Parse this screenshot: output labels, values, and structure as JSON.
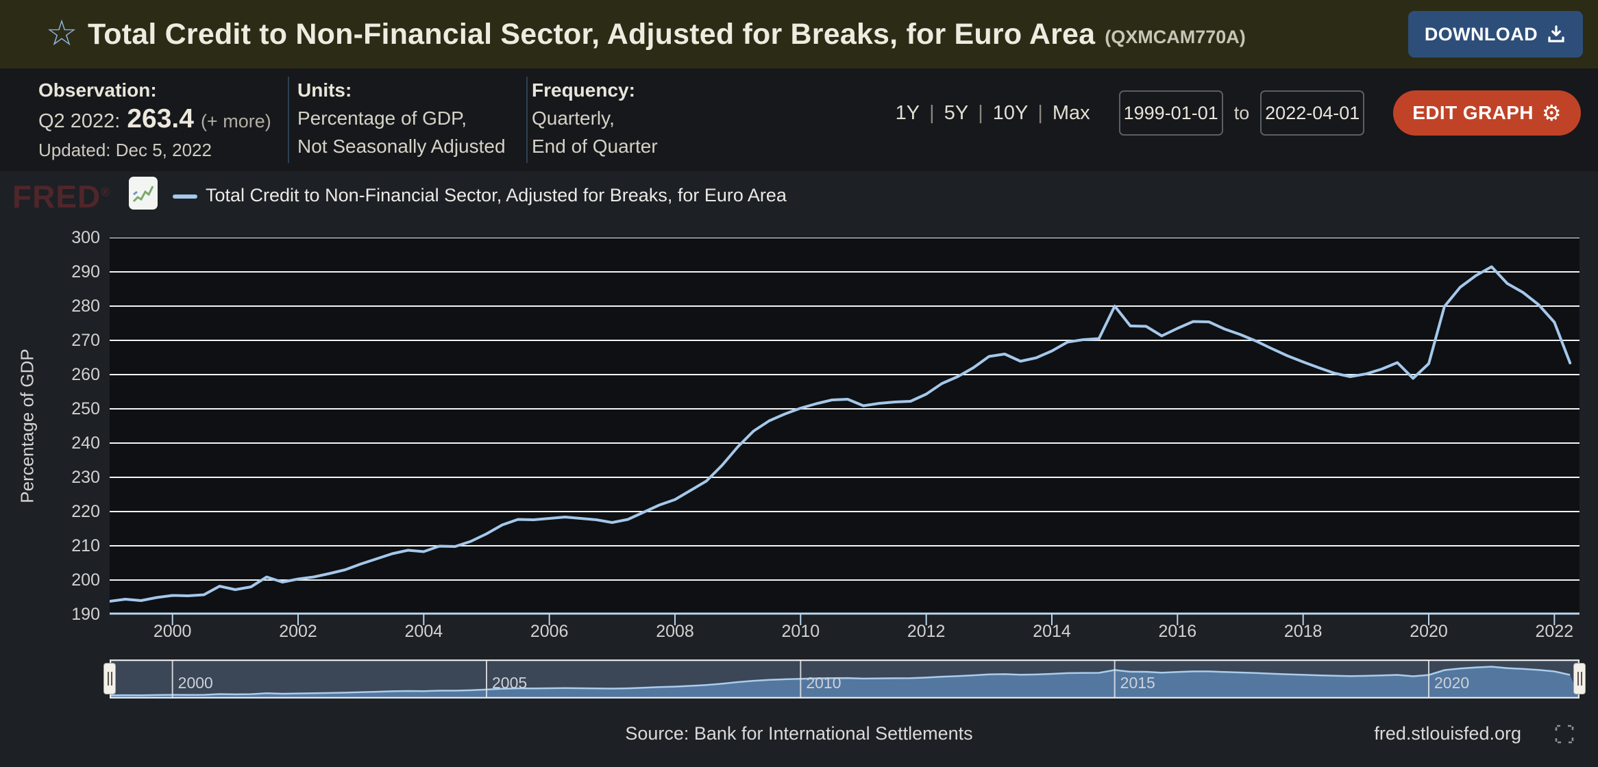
{
  "header": {
    "title": "Total Credit to Non-Financial Sector, Adjusted for Breaks, for Euro Area",
    "series_id": "(QXMCAM770A)",
    "download_label": "DOWNLOAD"
  },
  "info_bar": {
    "observation": {
      "label": "Observation:",
      "period": "Q2 2022:",
      "value": "263.4",
      "more_link": "(+ more)",
      "updated": "Updated: Dec 5, 2022"
    },
    "units": {
      "label": "Units:",
      "line1": "Percentage of GDP,",
      "line2": "Not Seasonally Adjusted"
    },
    "frequency": {
      "label": "Frequency:",
      "line1": "Quarterly,",
      "line2": "End of Quarter"
    },
    "range_options": [
      "1Y",
      "5Y",
      "10Y",
      "Max"
    ],
    "date_from": "1999-01-01",
    "to_label": "to",
    "date_to": "2022-04-01",
    "edit_graph_label": "EDIT GRAPH"
  },
  "legend": {
    "brand": "FRED",
    "label": "Total Credit to Non-Financial Sector, Adjusted for Breaks, for Euro Area"
  },
  "chart_data": {
    "type": "line",
    "title": "Total Credit to Non-Financial Sector, Adjusted for Breaks, for Euro Area",
    "ylabel": "Percentage of GDP",
    "ylim": [
      190,
      300
    ],
    "xlim": [
      1999.0,
      2022.4
    ],
    "y_ticks": [
      190,
      200,
      210,
      220,
      230,
      240,
      250,
      260,
      270,
      280,
      290,
      300
    ],
    "x_ticks": [
      2000,
      2002,
      2004,
      2006,
      2008,
      2010,
      2012,
      2014,
      2016,
      2018,
      2020,
      2022
    ],
    "grid": true,
    "legend_position": "top-left",
    "x_start": 1999.0,
    "x_step": 0.25,
    "frequency": "quarterly",
    "series": [
      {
        "name": "Total Credit to Non-Financial Sector, Adjusted for Breaks, for Euro Area",
        "color": "#a5c8eb",
        "values": [
          193.8,
          194.4,
          194.0,
          194.9,
          195.5,
          195.4,
          195.7,
          198.2,
          197.2,
          198.0,
          200.9,
          199.4,
          200.3,
          200.9,
          201.9,
          203.0,
          204.7,
          206.2,
          207.7,
          208.7,
          208.3,
          209.9,
          209.8,
          211.3,
          213.5,
          216.1,
          217.7,
          217.6,
          218.0,
          218.4,
          218.0,
          217.6,
          216.8,
          217.7,
          219.8,
          221.9,
          223.5,
          226.2,
          228.9,
          233.5,
          238.9,
          243.5,
          246.5,
          248.5,
          250.2,
          251.5,
          252.6,
          252.8,
          250.9,
          251.6,
          252.0,
          252.2,
          254.3,
          257.4,
          259.4,
          262.0,
          265.3,
          266.0,
          263.9,
          264.9,
          266.9,
          269.5,
          270.2,
          270.5,
          280.0,
          274.2,
          274.1,
          271.3,
          273.5,
          275.5,
          275.4,
          273.3,
          271.7,
          269.8,
          267.6,
          265.5,
          263.7,
          262.0,
          260.4,
          259.4,
          260.2,
          261.6,
          263.5,
          258.9,
          263.2,
          279.9,
          285.5,
          288.9,
          291.5,
          286.6,
          284.0,
          280.4,
          275.3,
          263.4
        ]
      }
    ]
  },
  "slider": {
    "tick_years": [
      2000,
      2005,
      2010,
      2015,
      2020
    ]
  },
  "footer": {
    "source": "Source: Bank for International Settlements",
    "site": "fred.stlouisfed.org"
  },
  "colors": {
    "header_bg": "#2c2b16",
    "line": "#a5c8eb",
    "plot_bg": "#0e1013",
    "gridline": "#f5f5f5",
    "axis_line": "#b9d5ee",
    "download_button": "#2d4e79",
    "edit_button": "#c04327",
    "slider_bg": "#3b4657",
    "slider_fill": "#54779f",
    "slider_line": "#abcdec",
    "slider_border": "#e2e5e8"
  }
}
